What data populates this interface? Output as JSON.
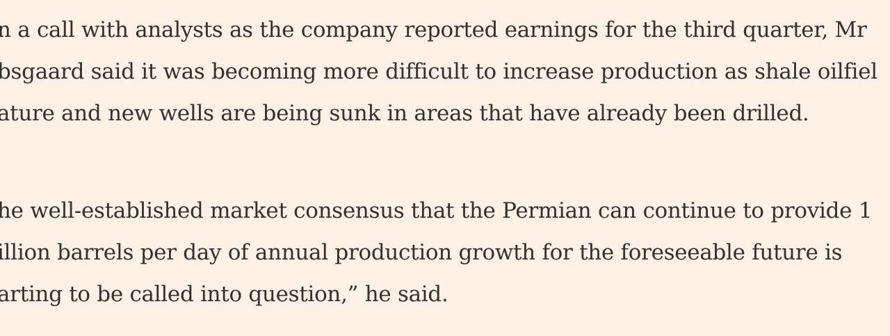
{
  "article": {
    "paragraphs": [
      {
        "lines": [
          "n a call with analysts as the company reported earnings for the third quarter, Mr",
          "bsgaard said it was becoming more difficult to increase production as shale oilfiel",
          "ature and new wells are being sunk in areas that have already been drilled."
        ]
      },
      {
        "lines": [
          "he well-established market consensus that the Permian can continue to provide 1",
          "illion barrels per day of annual production growth for the foreseeable future is",
          "arting to be called into question,” he said."
        ]
      }
    ]
  },
  "colors": {
    "background": "#fff1e5",
    "text": "#33302e"
  }
}
